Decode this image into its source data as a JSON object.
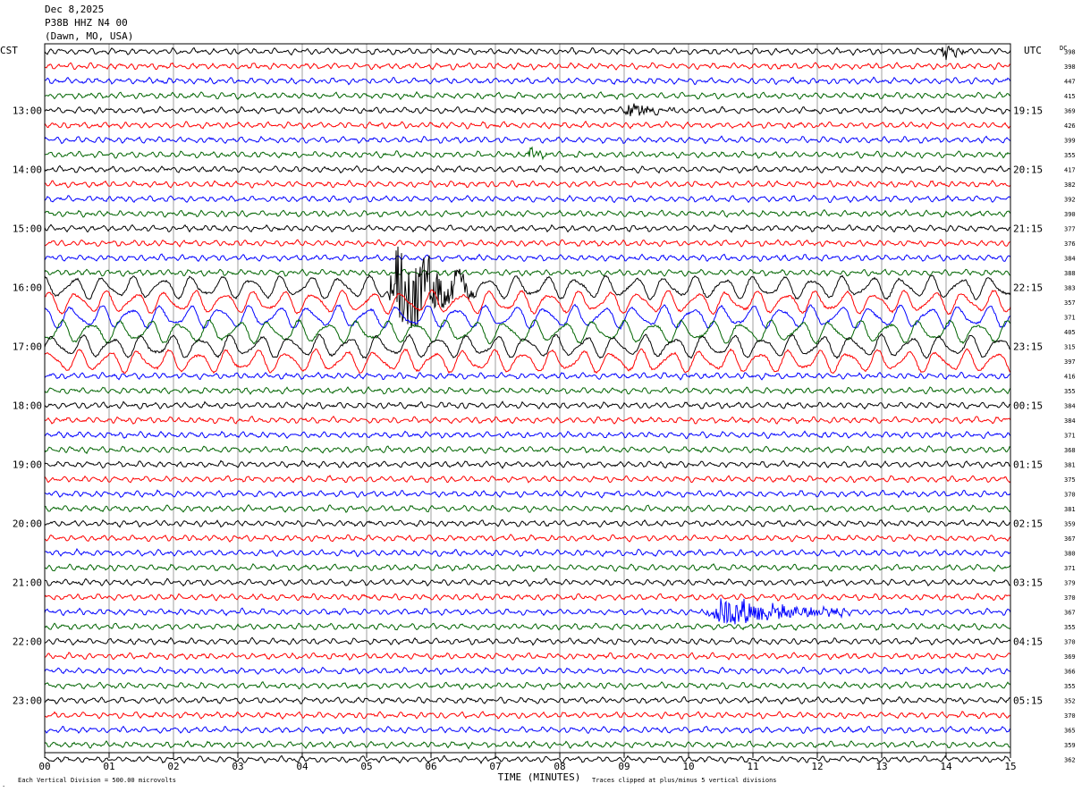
{
  "header": {
    "date": "Dec 8,2025",
    "station": "P38B HHZ N4 00",
    "location": "(Dawn, MO, USA)"
  },
  "labels": {
    "left_zone": "CST",
    "right_zone": "UTC",
    "dc_header": "DC"
  },
  "footer": {
    "scale_note": "Each Vertical Division =  500.00 microvolts",
    "clip_note": "Traces clipped at plus/minus 5 vertical divisions",
    "corner_mark": "."
  },
  "chart_data": {
    "type": "line",
    "xlabel": "TIME (MINUTES)",
    "xlim": [
      0,
      15
    ],
    "x_ticks": [
      "00",
      "01",
      "02",
      "03",
      "04",
      "05",
      "06",
      "07",
      "08",
      "09",
      "10",
      "11",
      "12",
      "13",
      "14",
      "15"
    ],
    "minutes_per_line": 15,
    "trace_colors": [
      "#000000",
      "#ff0000",
      "#0000ff",
      "#006400"
    ],
    "grid": true,
    "left_hour_labels": [
      {
        "line": 4,
        "text": "13:00"
      },
      {
        "line": 8,
        "text": "14:00"
      },
      {
        "line": 12,
        "text": "15:00"
      },
      {
        "line": 16,
        "text": "16:00"
      },
      {
        "line": 20,
        "text": "17:00"
      },
      {
        "line": 24,
        "text": "18:00"
      },
      {
        "line": 28,
        "text": "19:00"
      },
      {
        "line": 32,
        "text": "20:00"
      },
      {
        "line": 36,
        "text": "21:00"
      },
      {
        "line": 40,
        "text": "22:00"
      },
      {
        "line": 44,
        "text": "23:00"
      }
    ],
    "right_hour_labels": [
      {
        "line": 4,
        "text": "19:15"
      },
      {
        "line": 8,
        "text": "20:15"
      },
      {
        "line": 12,
        "text": "21:15"
      },
      {
        "line": 16,
        "text": "22:15"
      },
      {
        "line": 20,
        "text": "23:15"
      },
      {
        "line": 24,
        "text": "00:15"
      },
      {
        "line": 28,
        "text": "01:15"
      },
      {
        "line": 32,
        "text": "02:15"
      },
      {
        "line": 36,
        "text": "03:15"
      },
      {
        "line": 40,
        "text": "04:15"
      },
      {
        "line": 44,
        "text": "05:15"
      }
    ],
    "dc_offsets": [
      "398",
      "398",
      "447",
      "415",
      "369",
      "426",
      "399",
      "355",
      "417",
      "382",
      "392",
      "390",
      "377",
      "376",
      "384",
      "388",
      "383",
      "357",
      "371",
      "405",
      "315",
      "397",
      "416",
      "355",
      "384",
      "384",
      "371",
      "368",
      "381",
      "375",
      "370",
      "381",
      "359",
      "367",
      "380",
      "371",
      "379",
      "370",
      "367",
      "355",
      "370",
      "369",
      "366",
      "355",
      "352",
      "370",
      "365",
      "359",
      "362"
    ],
    "events": [
      {
        "line": 0,
        "start_min": 13.9,
        "end_min": 14.3,
        "amplitude": 1.6
      },
      {
        "line": 4,
        "start_min": 9.0,
        "end_min": 9.8,
        "amplitude": 1.4
      },
      {
        "line": 7,
        "start_min": 7.5,
        "end_min": 7.8,
        "amplitude": 1.2
      },
      {
        "line": 16,
        "start_min": 5.3,
        "end_min": 6.7,
        "amplitude": 2.2
      },
      {
        "line": 38,
        "start_min": 10.2,
        "end_min": 12.5,
        "amplitude": 2.4
      }
    ],
    "storm_lines": [
      16,
      17,
      18,
      19,
      20,
      21
    ],
    "storm_amplitude": 2.8
  }
}
